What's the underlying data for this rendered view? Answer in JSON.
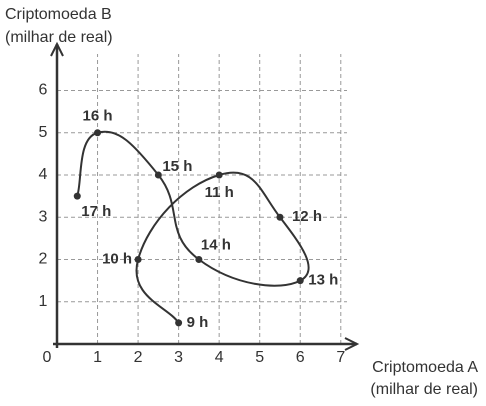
{
  "chart_data": {
    "type": "line",
    "ylabel": [
      "Criptomoeda B",
      "(milhar de real)"
    ],
    "xlabel": [
      "Criptomoeda A",
      "(milhar de real)"
    ],
    "x": [
      3,
      2,
      4,
      5.5,
      6,
      3.5,
      2.5,
      1,
      0.5
    ],
    "values": [
      0.5,
      2,
      4,
      3,
      1.5,
      2,
      4,
      5,
      3.5
    ],
    "point_labels": [
      "9 h",
      "10 h",
      "11 h",
      "12 h",
      "13 h",
      "14 h",
      "15 h",
      "16 h",
      "17 h"
    ],
    "color": "#333333",
    "xlim": [
      0,
      7.4
    ],
    "ylim": [
      0,
      7.1
    ],
    "xticks": [
      0,
      1,
      2,
      3,
      4,
      5,
      6,
      7
    ],
    "yticks": [
      1,
      2,
      3,
      4,
      5,
      6
    ],
    "grid": true
  }
}
